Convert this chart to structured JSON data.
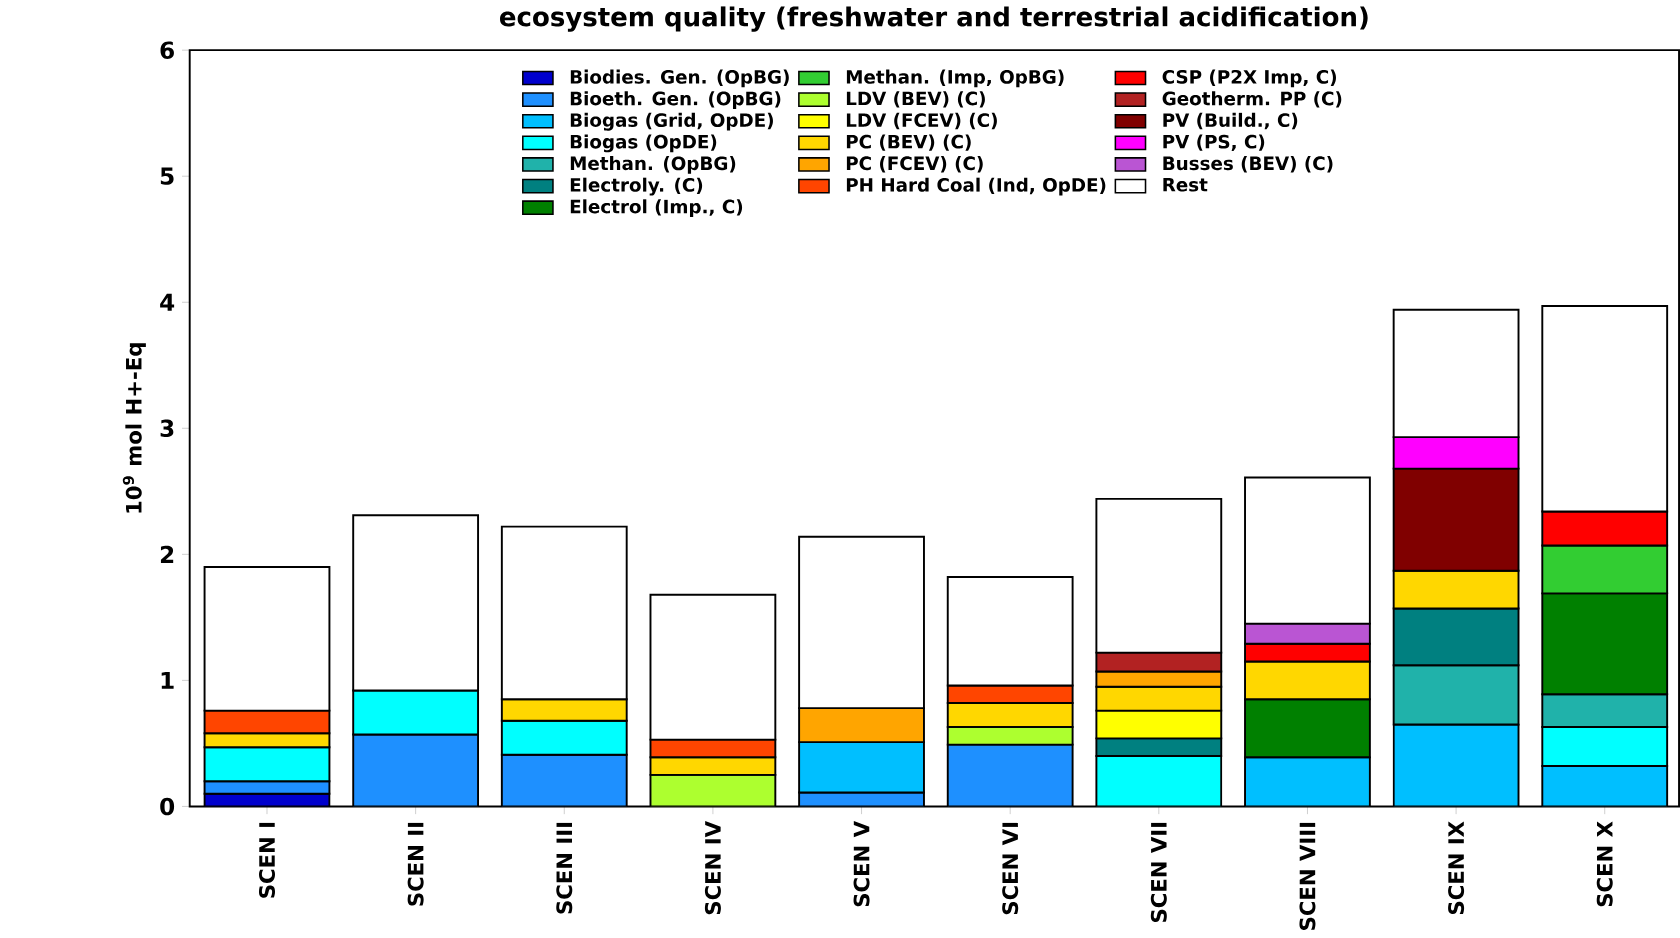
{
  "chart_data": {
    "type": "bar",
    "stacked": true,
    "title": "ecosystem quality (freshwater and terrestrial acidification)",
    "ylabel": "10$^{9}$ mol H+-Eq",
    "categories": [
      "SCEN I",
      "SCEN II",
      "SCEN III",
      "SCEN IV",
      "SCEN V",
      "SCEN VI",
      "SCEN VII",
      "SCEN VIII",
      "SCEN IX",
      "SCEN X"
    ],
    "ylim": [
      0,
      6
    ],
    "yticks": [
      0,
      1,
      2,
      3,
      4,
      5,
      6
    ],
    "legend": "top",
    "series": [
      {
        "name": "Biodies. Gen. (OpBG)",
        "color": "#0000cd",
        "values": [
          0.1,
          null,
          null,
          null,
          null,
          null,
          null,
          null,
          null,
          null
        ]
      },
      {
        "name": "Bioeth. Gen. (OpBG)",
        "color": "#1e90ff",
        "values": [
          0.1,
          0.57,
          0.41,
          null,
          0.11,
          0.49,
          null,
          null,
          null,
          null
        ]
      },
      {
        "name": "Biogas (Grid, OpDE)",
        "color": "#00bfff",
        "values": [
          null,
          null,
          null,
          null,
          0.4,
          null,
          null,
          0.39,
          0.65,
          0.32
        ]
      },
      {
        "name": "Biogas (OpDE)",
        "color": "#00ffff",
        "values": [
          0.27,
          0.35,
          0.27,
          null,
          null,
          null,
          0.4,
          null,
          null,
          0.31
        ]
      },
      {
        "name": "Methan. (OpBG)",
        "color": "#20b2aa",
        "values": [
          null,
          null,
          null,
          null,
          null,
          null,
          null,
          null,
          0.47,
          0.26
        ]
      },
      {
        "name": "Electroly. (C)",
        "color": "#008080",
        "values": [
          null,
          null,
          null,
          null,
          null,
          null,
          0.14,
          null,
          0.45,
          null
        ]
      },
      {
        "name": "Electrol (Imp., C)",
        "color": "#008000",
        "values": [
          null,
          null,
          null,
          null,
          null,
          null,
          null,
          0.46,
          null,
          0.8
        ]
      },
      {
        "name": "Methan. (Imp, OpBG)",
        "color": "#32cd32",
        "values": [
          null,
          null,
          null,
          null,
          null,
          null,
          null,
          null,
          null,
          0.38
        ]
      },
      {
        "name": "LDV (BEV) (C)",
        "color": "#adff2f",
        "values": [
          null,
          null,
          null,
          0.25,
          null,
          0.14,
          null,
          null,
          null,
          null
        ]
      },
      {
        "name": "LDV (FCEV) (C)",
        "color": "#ffff00",
        "values": [
          null,
          null,
          null,
          null,
          null,
          null,
          0.22,
          null,
          null,
          null
        ]
      },
      {
        "name": "PC (BEV) (C)",
        "color": "#ffd700",
        "values": [
          0.11,
          null,
          0.17,
          0.14,
          null,
          0.19,
          0.19,
          0.3,
          0.3,
          null
        ]
      },
      {
        "name": "PC (FCEV) (C)",
        "color": "#ffa500",
        "values": [
          null,
          null,
          null,
          null,
          0.27,
          null,
          0.12,
          null,
          null,
          null
        ]
      },
      {
        "name": "PH Hard Coal (Ind, OpDE)",
        "color": "#ff4500",
        "values": [
          0.18,
          null,
          null,
          0.14,
          null,
          0.14,
          null,
          null,
          null,
          null
        ]
      },
      {
        "name": "CSP (P2X Imp, C)",
        "color": "#ff0000",
        "values": [
          null,
          null,
          null,
          null,
          null,
          null,
          null,
          0.14,
          null,
          0.27
        ]
      },
      {
        "name": "Geotherm. PP (C)",
        "color": "#b22222",
        "values": [
          null,
          null,
          null,
          null,
          null,
          null,
          0.15,
          null,
          null,
          null
        ]
      },
      {
        "name": "PV (Build., C)",
        "color": "#800000",
        "values": [
          null,
          null,
          null,
          null,
          null,
          null,
          null,
          null,
          0.81,
          null
        ]
      },
      {
        "name": "PV (PS, C)",
        "color": "#ff00ff",
        "values": [
          null,
          null,
          null,
          null,
          null,
          null,
          null,
          null,
          0.25,
          null
        ]
      },
      {
        "name": "Busses (BEV) (C)",
        "color": "#ba55d3",
        "values": [
          null,
          null,
          null,
          null,
          null,
          null,
          null,
          0.16,
          null,
          null
        ]
      },
      {
        "name": "Rest",
        "color": "#ffffff",
        "values": [
          1.14,
          1.39,
          1.37,
          1.15,
          1.36,
          0.86,
          1.22,
          1.16,
          1.01,
          1.63
        ]
      }
    ]
  }
}
